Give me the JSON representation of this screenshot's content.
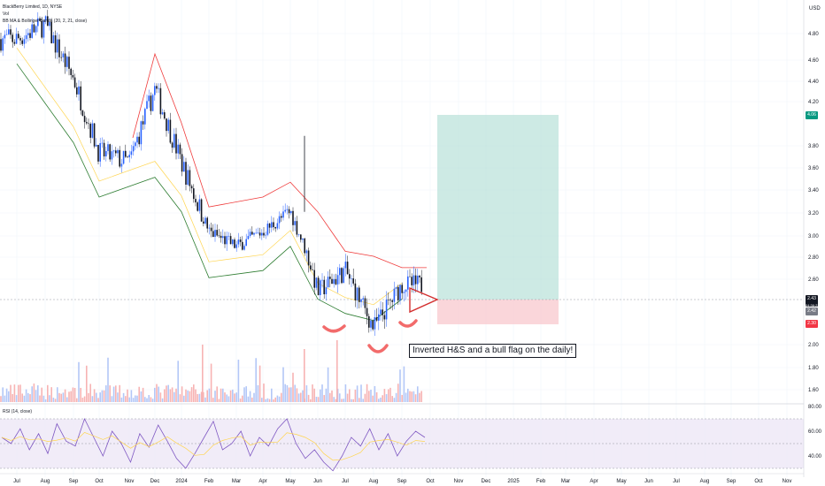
{
  "chart_data": [
    {
      "type": "candlestick",
      "title": "BlackBerry Limited, 1D, NYSE",
      "overlay_indicators": [
        "Vol",
        "BB MA & Bollinger Bands (20, 2, 21, close)"
      ],
      "currency": "USD",
      "x_ticks": [
        "Jul",
        "Aug",
        "Sep",
        "Oct",
        "Nov",
        "Dec",
        "2024",
        "Feb",
        "Mar",
        "Apr",
        "May",
        "Jun",
        "Jul",
        "Aug",
        "Sep",
        "Oct",
        "Nov",
        "Dec",
        "2025",
        "Feb",
        "Mar",
        "Apr",
        "May",
        "Jun",
        "Jul",
        "Aug",
        "Sep",
        "Oct",
        "Nov"
      ],
      "y_ticks": [
        "4.80",
        "4.60",
        "4.40",
        "4.20",
        "3.80",
        "3.60",
        "3.40",
        "3.20",
        "3.00",
        "2.80",
        "2.60",
        "2.00",
        "1.80",
        "1.60"
      ],
      "ylim": [
        1.53,
        5.0
      ],
      "price_path": [
        [
          "Jul",
          4.8
        ],
        [
          "Aug",
          4.95
        ],
        [
          "Sep",
          4.4
        ],
        [
          "Oct",
          3.65
        ],
        [
          "Nov",
          3.55
        ],
        [
          "Dec",
          4.3
        ],
        [
          "2024",
          3.55
        ],
        [
          "Feb",
          2.85
        ],
        [
          "Mar",
          2.7
        ],
        [
          "Apr",
          2.85
        ],
        [
          "May",
          3.05
        ],
        [
          "Jun",
          2.35
        ],
        [
          "Jul",
          2.5
        ],
        [
          "Aug",
          2.1
        ],
        [
          "Sep",
          2.4
        ]
      ],
      "bollinger": {
        "upper": [
          [
            "Dec",
            4.65
          ],
          [
            "2024",
            3.95
          ],
          [
            "Feb",
            3.1
          ],
          [
            "Apr",
            3.2
          ],
          [
            "May",
            3.35
          ],
          [
            "Jun",
            3.05
          ],
          [
            "Jul",
            2.65
          ],
          [
            "Aug",
            2.6
          ],
          [
            "Sep",
            2.52
          ]
        ],
        "lower": [
          [
            "Jul",
            4.55
          ],
          [
            "Aug",
            4.15
          ],
          [
            "Sep",
            3.75
          ],
          [
            "Oct",
            3.2
          ],
          [
            "Dec",
            3.4
          ],
          [
            "2024",
            3.05
          ],
          [
            "Feb",
            2.45
          ],
          [
            "Apr",
            2.5
          ],
          [
            "May",
            2.7
          ],
          [
            "Jun",
            2.3
          ],
          [
            "Jul",
            2.2
          ],
          [
            "Aug",
            2.15
          ],
          [
            "Sep",
            2.3
          ]
        ]
      },
      "current_price": "2.43",
      "countdown": "04:36:22",
      "price_labels": [
        "4.06",
        "2.42",
        "2.30"
      ],
      "position_tool": {
        "entry": 2.43,
        "target": 4.06,
        "stop": 2.3,
        "target_color": "#b2dfd5",
        "stop_color": "#f8c8cd"
      },
      "annotation": "Inverted H&S and a bull flag on the daily!",
      "colors": {
        "up": "#2962ff",
        "down": "#131722",
        "bb_upper": "#ef3b3b",
        "bb_lower": "#2e7d32",
        "bb_basis": "#ffd54f",
        "vol_up": "#b3c7f7",
        "vol_down": "#f7b3b3"
      }
    },
    {
      "type": "line",
      "title": "RSI (14, close)",
      "y_ticks": [
        "80.00",
        "60.00",
        "40.00"
      ],
      "ylim": [
        20,
        80
      ],
      "band": [
        30,
        70
      ],
      "values": [
        55,
        50,
        62,
        45,
        58,
        42,
        66,
        52,
        48,
        70,
        55,
        40,
        60,
        50,
        35,
        58,
        47,
        65,
        52,
        38,
        30,
        42,
        55,
        68,
        45,
        50,
        60,
        40,
        55,
        48,
        62,
        70,
        50,
        38,
        45,
        35,
        28,
        40,
        55,
        48,
        62,
        45,
        58,
        40,
        52,
        60,
        55
      ],
      "colors": {
        "line": "#7e57c2",
        "ma": "#ffd54f",
        "band": "#ede7f6"
      }
    }
  ]
}
